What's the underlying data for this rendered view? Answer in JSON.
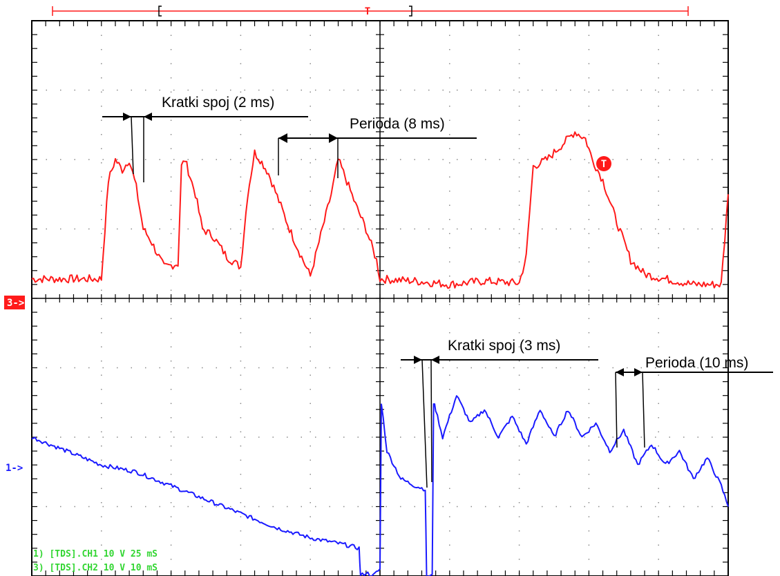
{
  "colors": {
    "ch3": "#ff1a1a",
    "ch1": "#1a1aff",
    "status": "#33d633",
    "grid": "#000000",
    "annotation": "#000000"
  },
  "markers": {
    "ch3_label": "3->",
    "ch1_label": "1->",
    "trigger_label": "T"
  },
  "status_lines": [
    "1) [TDS].CH1  10  V   25 mS",
    "3) [TDS].CH2  10  V   10 mS"
  ],
  "annotations": {
    "top_short": "Kratki spoj (2 ms)",
    "top_period": "Perioda (8 ms)",
    "bottom_short": "Kratki spoj (3 ms)",
    "bottom_period": "Perioda (10 ms)"
  },
  "chart_data": {
    "type": "line",
    "grid": true,
    "x_divisions": 10,
    "y_divisions": 8,
    "series": [
      {
        "channel": "ch3",
        "x_div": [
          0,
          1.0,
          1.1,
          1.2,
          1.3,
          1.4,
          1.5,
          1.6,
          1.7,
          1.9,
          2.1,
          2.15,
          2.2,
          2.35,
          2.45,
          2.6,
          2.8,
          3.0,
          3.1,
          3.2,
          3.28,
          3.4,
          3.55,
          3.7,
          3.85,
          4.0,
          4.3,
          4.4,
          4.5,
          4.65,
          4.8,
          4.95,
          5.0,
          5.5,
          6.0,
          6.5,
          7.0,
          7.1,
          7.2,
          7.4,
          7.6,
          7.8,
          7.95,
          8.05,
          8.2,
          8.4,
          8.6,
          8.8,
          9.0,
          9.5,
          9.9,
          10.0
        ],
        "y_div": [
          0.28,
          0.28,
          1.7,
          2.0,
          1.85,
          2.0,
          1.6,
          1.0,
          0.85,
          0.45,
          0.5,
          1.9,
          2.0,
          1.5,
          1.0,
          0.9,
          0.6,
          0.45,
          1.5,
          2.1,
          2.0,
          1.8,
          1.4,
          1.0,
          0.65,
          0.32,
          1.5,
          2.0,
          1.75,
          1.35,
          1.0,
          0.55,
          0.28,
          0.25,
          0.2,
          0.25,
          0.22,
          0.6,
          1.9,
          2.0,
          2.2,
          2.4,
          2.3,
          2.0,
          1.7,
          1.1,
          0.55,
          0.35,
          0.3,
          0.2,
          0.2,
          1.5
        ]
      },
      {
        "channel": "ch1",
        "x_div": [
          0,
          0.5,
          1.0,
          1.5,
          2.0,
          2.5,
          3.0,
          3.5,
          4.0,
          4.5,
          4.7,
          4.72,
          4.8,
          4.9,
          5.0,
          5.02,
          5.1,
          5.3,
          5.5,
          5.65,
          5.67,
          5.75,
          5.77,
          5.8,
          5.85,
          5.9,
          6.1,
          6.3,
          6.5,
          6.7,
          6.9,
          7.1,
          7.3,
          7.5,
          7.7,
          7.9,
          8.1,
          8.3,
          8.5,
          8.7,
          8.9,
          9.1,
          9.3,
          9.5,
          9.7,
          9.9,
          10.0
        ],
        "y_div": [
          -2.0,
          -2.2,
          -2.4,
          -2.5,
          -2.7,
          -2.9,
          -3.1,
          -3.3,
          -3.45,
          -3.55,
          -3.6,
          -4.0,
          -3.95,
          -4.0,
          -3.9,
          -1.5,
          -2.2,
          -2.6,
          -2.7,
          -2.75,
          -4.0,
          -4.0,
          -1.5,
          -1.6,
          -1.8,
          -2.0,
          -1.4,
          -1.8,
          -1.6,
          -2.0,
          -1.7,
          -2.1,
          -1.6,
          -2.0,
          -1.6,
          -2.0,
          -1.8,
          -2.2,
          -1.9,
          -2.4,
          -2.1,
          -2.4,
          -2.2,
          -2.6,
          -2.3,
          -2.7,
          -3.0
        ]
      }
    ]
  }
}
